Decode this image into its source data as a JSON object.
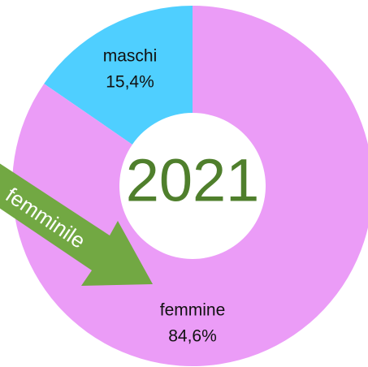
{
  "chart_data": {
    "type": "donut",
    "center_label": "2021",
    "categories": [
      "maschi",
      "femmine"
    ],
    "values": [
      15.4,
      84.6
    ],
    "value_labels": [
      "15,4%",
      "84,6%"
    ],
    "colors": [
      "#4fcfff",
      "#eb9cf7"
    ],
    "annotation": "femminile"
  }
}
